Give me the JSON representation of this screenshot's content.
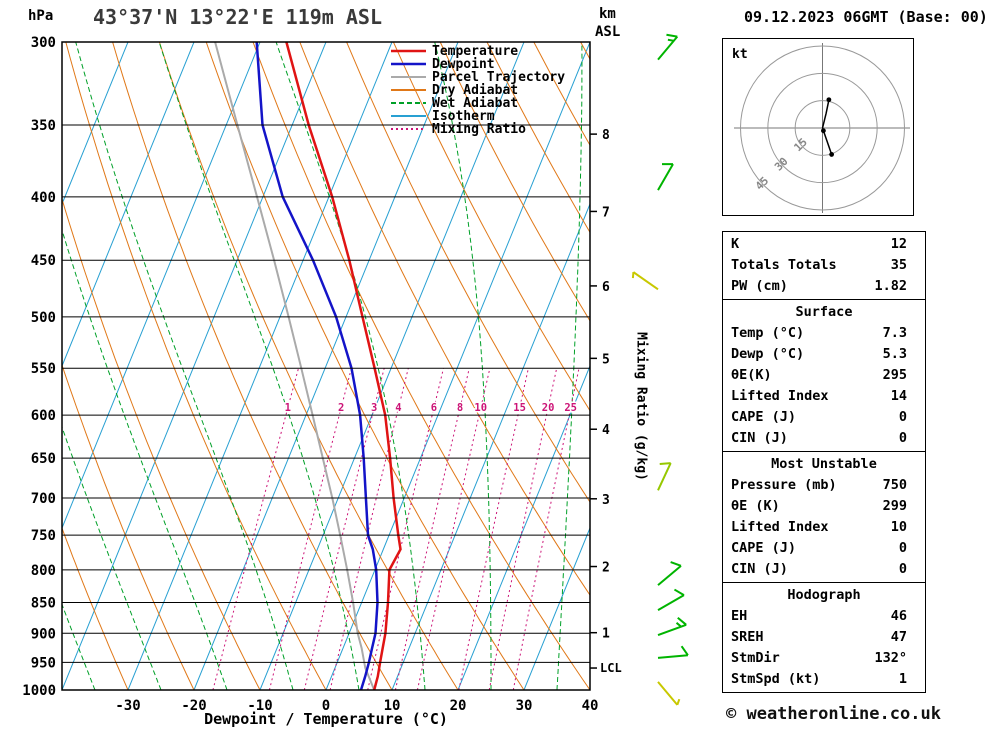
{
  "header": {
    "station_title": "43°37'N 13°22'E 119m ASL",
    "date_title": "09.12.2023 06GMT (Base: 00)",
    "pressure_unit": "hPa",
    "altitude_unit": "km",
    "altitude_ref": "ASL",
    "x_axis_label": "Dewpoint / Temperature (°C)",
    "mixing_ratio_axis_label": "Mixing Ratio (g/kg)",
    "copyright": "© weatheronline.co.uk"
  },
  "legend": [
    {
      "key": "temperature",
      "label": "Temperature"
    },
    {
      "key": "dewpoint",
      "label": "Dewpoint"
    },
    {
      "key": "parcel",
      "label": "Parcel Trajectory"
    },
    {
      "key": "dry_adiabat",
      "label": "Dry Adiabat"
    },
    {
      "key": "wet_adiabat",
      "label": "Wet Adiabat"
    },
    {
      "key": "isotherm",
      "label": "Isotherm"
    },
    {
      "key": "mixing_ratio",
      "label": "Mixing Ratio"
    }
  ],
  "styles": {
    "temperature": {
      "color": "#e01414",
      "width": 2.5,
      "dash": ""
    },
    "dewpoint": {
      "color": "#1414c8",
      "width": 2.5,
      "dash": ""
    },
    "parcel": {
      "color": "#aaaaaa",
      "width": 2,
      "dash": ""
    },
    "dry_adiabat": {
      "color": "#e07818",
      "width": 1,
      "dash": ""
    },
    "wet_adiabat": {
      "color": "#00a028",
      "width": 1,
      "dash": "5,3"
    },
    "isotherm": {
      "color": "#28a0d2",
      "width": 1,
      "dash": ""
    },
    "mixing_ratio": {
      "color": "#cc1477",
      "width": 1,
      "dash": "2,3"
    }
  },
  "chart_data": {
    "skewt": {
      "type": "line",
      "variant": "skew-t-log-p",
      "pressure_range": [
        300,
        1000
      ],
      "temp_range_c": [
        -40,
        40
      ],
      "skew_shift_c": 40,
      "pressure_ticks": [
        300,
        350,
        400,
        450,
        500,
        550,
        600,
        650,
        700,
        750,
        800,
        850,
        900,
        950,
        1000
      ],
      "temp_ticks": [
        -30,
        -20,
        -10,
        0,
        10,
        20,
        30,
        40
      ],
      "km_ticks": [
        [
          1,
          899
        ],
        [
          2,
          795
        ],
        [
          3,
          701
        ],
        [
          4,
          616
        ],
        [
          5,
          540
        ],
        [
          6,
          472
        ],
        [
          7,
          411
        ],
        [
          8,
          356
        ]
      ],
      "lcl": {
        "label": "LCL",
        "pressure": 960
      },
      "isotherm_step_c": 10,
      "dry_adiabat_theta_c": {
        "min": -40,
        "max": 120,
        "step": 10
      },
      "wet_adiabat_thetaw_c": {
        "min": -55,
        "max": 45,
        "step": 10
      },
      "mixing_ratio_values": [
        1,
        2,
        3,
        4,
        6,
        8,
        10,
        15,
        20,
        25
      ],
      "mixing_ratio_label_pressure": 592,
      "temperature_profile": [
        [
          1000,
          7.3
        ],
        [
          975,
          7.0
        ],
        [
          950,
          6.5
        ],
        [
          925,
          6.0
        ],
        [
          900,
          5.5
        ],
        [
          850,
          4.0
        ],
        [
          800,
          2.2
        ],
        [
          770,
          2.6
        ],
        [
          750,
          1.4
        ],
        [
          700,
          -1.6
        ],
        [
          650,
          -4.6
        ],
        [
          600,
          -8.0
        ],
        [
          550,
          -12.5
        ],
        [
          500,
          -17.5
        ],
        [
          450,
          -23.0
        ],
        [
          400,
          -29.5
        ],
        [
          350,
          -37.5
        ],
        [
          300,
          -46.0
        ]
      ],
      "dewpoint_profile": [
        [
          1000,
          5.3
        ],
        [
          975,
          5.1
        ],
        [
          950,
          4.8
        ],
        [
          925,
          4.4
        ],
        [
          900,
          4.0
        ],
        [
          850,
          2.4
        ],
        [
          800,
          0.2
        ],
        [
          770,
          -1.6
        ],
        [
          750,
          -3.2
        ],
        [
          700,
          -5.8
        ],
        [
          650,
          -8.6
        ],
        [
          600,
          -11.8
        ],
        [
          550,
          -16.0
        ],
        [
          500,
          -21.5
        ],
        [
          450,
          -28.5
        ],
        [
          400,
          -37.0
        ],
        [
          350,
          -44.5
        ],
        [
          300,
          -50.5
        ]
      ],
      "parcel_profile": [
        [
          1000,
          7.3
        ],
        [
          960,
          4.6
        ],
        [
          925,
          2.8
        ],
        [
          900,
          1.3
        ],
        [
          850,
          -1.3
        ],
        [
          800,
          -4.2
        ],
        [
          750,
          -7.4
        ],
        [
          700,
          -10.9
        ],
        [
          650,
          -14.8
        ],
        [
          600,
          -19.0
        ],
        [
          550,
          -23.6
        ],
        [
          500,
          -28.7
        ],
        [
          450,
          -34.4
        ],
        [
          400,
          -40.9
        ],
        [
          350,
          -48.3
        ],
        [
          300,
          -56.8
        ]
      ],
      "wind_barbs": [
        {
          "p": 310,
          "dir": 40,
          "spd": 15,
          "color": "#00b400"
        },
        {
          "p": 395,
          "dir": 30,
          "spd": 10,
          "color": "#00b400"
        },
        {
          "p": 475,
          "dir": 305,
          "spd": 5,
          "color": "#c8c800"
        },
        {
          "p": 690,
          "dir": 25,
          "spd": 10,
          "color": "#96c800"
        },
        {
          "p": 823,
          "dir": 50,
          "spd": 10,
          "color": "#00b400"
        },
        {
          "p": 862,
          "dir": 60,
          "spd": 10,
          "color": "#00b400"
        },
        {
          "p": 903,
          "dir": 70,
          "spd": 15,
          "color": "#00b400"
        },
        {
          "p": 942,
          "dir": 85,
          "spd": 10,
          "color": "#00b400"
        },
        {
          "p": 985,
          "dir": 140,
          "spd": 5,
          "color": "#c8c800"
        }
      ]
    },
    "hodograph": {
      "type": "line",
      "unit_label": "kt",
      "rings_kt": [
        15,
        30,
        45
      ],
      "trace_segments_kt": [
        [
          [
            0,
            0
          ],
          [
            2,
            8
          ],
          [
            3.5,
            15.5
          ]
        ],
        [
          [
            0,
            0
          ],
          [
            5,
            -14.5
          ]
        ]
      ],
      "dots_kt": [
        [
          3.5,
          15.5
        ],
        [
          5,
          -14.5
        ],
        [
          0.5,
          -1.5
        ]
      ]
    }
  },
  "stats": {
    "boxes": [
      {
        "id": "indices",
        "title": "",
        "rows": [
          [
            "K",
            "12"
          ],
          [
            "Totals Totals",
            "35"
          ],
          [
            "PW (cm)",
            "1.82"
          ]
        ]
      },
      {
        "id": "surface",
        "title": "Surface",
        "rows": [
          [
            "Temp (°C)",
            "7.3"
          ],
          [
            "Dewp (°C)",
            "5.3"
          ],
          [
            "θE(K)",
            "295"
          ],
          [
            "Lifted Index",
            "14"
          ],
          [
            "CAPE (J)",
            "0"
          ],
          [
            "CIN (J)",
            "0"
          ]
        ]
      },
      {
        "id": "most-unstable",
        "title": "Most Unstable",
        "rows": [
          [
            "Pressure (mb)",
            "750"
          ],
          [
            "θE (K)",
            "299"
          ],
          [
            "Lifted Index",
            "10"
          ],
          [
            "CAPE (J)",
            "0"
          ],
          [
            "CIN (J)",
            "0"
          ]
        ]
      },
      {
        "id": "hodograph",
        "title": "Hodograph",
        "rows": [
          [
            "EH",
            "46"
          ],
          [
            "SREH",
            "47"
          ],
          [
            "StmDir",
            "132°"
          ],
          [
            "StmSpd (kt)",
            "1"
          ]
        ]
      }
    ]
  }
}
